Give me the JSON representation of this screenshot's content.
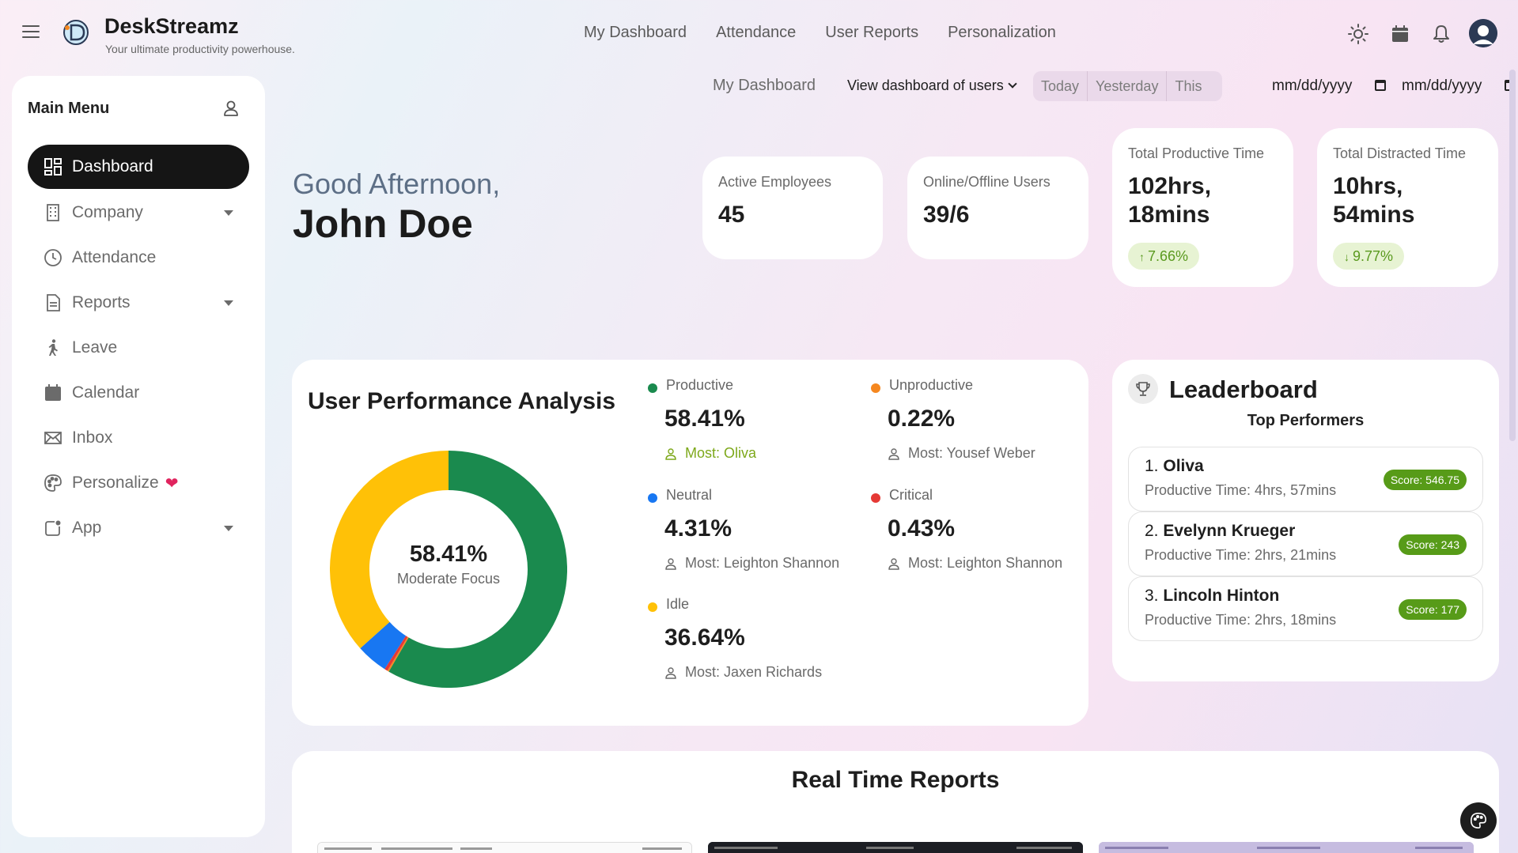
{
  "app": {
    "name": "DeskStreamz",
    "tagline": "Your ultimate productivity powerhouse."
  },
  "topnav": [
    "My Dashboard",
    "Attendance",
    "User Reports",
    "Personalization"
  ],
  "filters": {
    "breadcrumb": "My Dashboard",
    "view_users": "View dashboard of users",
    "periods": [
      "Today",
      "Yesterday",
      "This Month"
    ],
    "date_from": "mm/dd/yyyy",
    "date_to": "mm/dd/yyyy"
  },
  "sidebar": {
    "title": "Main Menu",
    "items": [
      {
        "label": "Dashboard",
        "icon": "dashboard-icon",
        "active": true
      },
      {
        "label": "Company",
        "icon": "building-icon",
        "caret": true
      },
      {
        "label": "Attendance",
        "icon": "clock-icon"
      },
      {
        "label": "Reports",
        "icon": "document-icon",
        "caret": true
      },
      {
        "label": "Leave",
        "icon": "walking-icon"
      },
      {
        "label": "Calendar",
        "icon": "calendar-icon"
      },
      {
        "label": "Inbox",
        "icon": "mail-icon"
      },
      {
        "label": "Personalize",
        "icon": "palette-icon"
      },
      {
        "label": "App",
        "icon": "app-icon",
        "caret": true
      }
    ]
  },
  "greeting": {
    "line1": "Good Afternoon,",
    "name": "John Doe"
  },
  "stats": {
    "active": {
      "label": "Active Employees",
      "value": "45"
    },
    "online": {
      "label": "Online/Offline Users",
      "value": "39/6"
    },
    "productive": {
      "label": "Total Productive Time",
      "value_1": "102hrs,",
      "value_2": "18mins",
      "change": "7.66%",
      "direction": "up"
    },
    "distracted": {
      "label": "Total Distracted Time",
      "value_1": "10hrs,",
      "value_2": "54mins",
      "change": "9.77%",
      "direction": "down"
    }
  },
  "performance": {
    "title": "User Performance Analysis",
    "center_value": "58.41%",
    "center_label": "Moderate Focus",
    "categories": [
      {
        "name": "Productive",
        "value": "58.41%",
        "pct": 58.41,
        "most": "Most: Oliva",
        "color": "#1a8a4e"
      },
      {
        "name": "Unproductive",
        "value": "0.22%",
        "pct": 0.22,
        "most": "Most: Yousef Weber",
        "color": "#f5871f"
      },
      {
        "name": "Neutral",
        "value": "4.31%",
        "pct": 4.31,
        "most": "Most: Leighton Shannon",
        "color": "#1877f2"
      },
      {
        "name": "Critical",
        "value": "0.43%",
        "pct": 0.43,
        "most": "Most: Leighton Shannon",
        "color": "#e53935"
      },
      {
        "name": "Idle",
        "value": "36.64%",
        "pct": 36.64,
        "most": "Most: Jaxen Richards",
        "color": "#ffc107"
      }
    ]
  },
  "leaderboard": {
    "title": "Leaderboard",
    "subtitle": "Top Performers",
    "rows": [
      {
        "rank": "1.",
        "name": "Oliva",
        "time": "Productive Time: 4hrs, 57mins",
        "score": "Score: 546.75"
      },
      {
        "rank": "2.",
        "name": "Evelynn Krueger",
        "time": "Productive Time: 2hrs, 21mins",
        "score": "Score: 243"
      },
      {
        "rank": "3.",
        "name": "Lincoln Hinton",
        "time": "Productive Time: 2hrs, 18mins",
        "score": "Score: 177"
      }
    ]
  },
  "realtime": {
    "title": "Real Time Reports"
  }
}
